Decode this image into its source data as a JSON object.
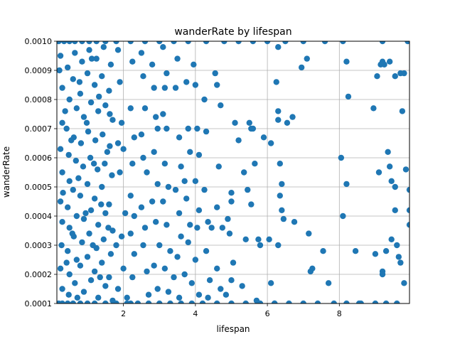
{
  "chart_data": {
    "type": "scatter",
    "title": "wanderRate by lifespan",
    "xlabel": "lifespan",
    "ylabel": "wanderRate",
    "xlim": [
      0.15,
      9.95
    ],
    "ylim": [
      0.0001,
      0.001
    ],
    "xticks": [
      2,
      4,
      6,
      8
    ],
    "xtick_labels": [
      "2",
      "4",
      "6",
      "8"
    ],
    "yticks": [
      0.0001,
      0.0002,
      0.0003,
      0.0004,
      0.0005,
      0.0006,
      0.0007,
      0.0008,
      0.0009,
      0.001
    ],
    "ytick_labels": [
      "0.0001",
      "0.0002",
      "0.0003",
      "0.0004",
      "0.0005",
      "0.0006",
      "0.0007",
      "0.0008",
      "0.0009",
      "0.0010"
    ],
    "grid": true,
    "marker_color": "#1f77b4",
    "points": [
      [
        0.2,
        0.0001
      ],
      [
        0.3,
        0.0001
      ],
      [
        0.45,
        0.0001
      ],
      [
        0.6,
        0.0001
      ],
      [
        0.8,
        0.0001
      ],
      [
        1.0,
        0.0001
      ],
      [
        1.2,
        0.0001
      ],
      [
        1.5,
        0.0001
      ],
      [
        1.8,
        0.0001
      ],
      [
        2.1,
        0.0001
      ],
      [
        2.4,
        0.0001
      ],
      [
        2.7,
        0.0001
      ],
      [
        3.0,
        0.0001
      ],
      [
        3.3,
        0.0001
      ],
      [
        3.6,
        0.0001
      ],
      [
        3.9,
        0.0001
      ],
      [
        4.2,
        0.0001
      ],
      [
        4.6,
        0.0001
      ],
      [
        5.0,
        0.0001
      ],
      [
        5.4,
        0.0001
      ],
      [
        5.8,
        0.0001
      ],
      [
        6.2,
        0.0001
      ],
      [
        6.6,
        0.0001
      ],
      [
        7.0,
        0.0001
      ],
      [
        7.4,
        0.0001
      ],
      [
        8.2,
        0.0001
      ],
      [
        8.6,
        0.0001
      ],
      [
        9.0,
        0.0001
      ],
      [
        9.3,
        0.0001
      ],
      [
        9.6,
        0.0001
      ],
      [
        0.2,
        0.001
      ],
      [
        0.35,
        0.001
      ],
      [
        0.5,
        0.001
      ],
      [
        0.65,
        0.001
      ],
      [
        0.85,
        0.001
      ],
      [
        1.05,
        0.001
      ],
      [
        1.25,
        0.001
      ],
      [
        1.5,
        0.001
      ],
      [
        1.8,
        0.001
      ],
      [
        2.2,
        0.001
      ],
      [
        2.6,
        0.001
      ],
      [
        3.0,
        0.001
      ],
      [
        3.4,
        0.001
      ],
      [
        3.8,
        0.001
      ],
      [
        4.3,
        0.001
      ],
      [
        4.8,
        0.001
      ],
      [
        5.2,
        0.001
      ],
      [
        5.6,
        0.001
      ],
      [
        6.0,
        0.001
      ],
      [
        6.5,
        0.001
      ],
      [
        7.0,
        0.001
      ],
      [
        7.6,
        0.001
      ],
      [
        8.1,
        0.001
      ],
      [
        9.2,
        0.001
      ],
      [
        9.9,
        0.001
      ],
      [
        0.25,
        0.00095
      ],
      [
        0.3,
        0.00084
      ],
      [
        0.3,
        0.00072
      ],
      [
        0.25,
        0.00063
      ],
      [
        0.3,
        0.00055
      ],
      [
        0.25,
        0.00045
      ],
      [
        0.3,
        0.00038
      ],
      [
        0.28,
        0.0003
      ],
      [
        0.25,
        0.00022
      ],
      [
        0.3,
        0.00015
      ],
      [
        0.45,
        0.00091
      ],
      [
        0.5,
        0.0008
      ],
      [
        0.42,
        0.0007
      ],
      [
        0.48,
        0.00061
      ],
      [
        0.5,
        0.00052
      ],
      [
        0.45,
        0.00043
      ],
      [
        0.5,
        0.00036
      ],
      [
        0.45,
        0.00028
      ],
      [
        0.5,
        0.0002
      ],
      [
        0.48,
        0.00013
      ],
      [
        0.65,
        0.00096
      ],
      [
        0.6,
        0.00087
      ],
      [
        0.7,
        0.00077
      ],
      [
        0.62,
        0.00067
      ],
      [
        0.68,
        0.00059
      ],
      [
        0.6,
        0.00049
      ],
      [
        0.7,
        0.0004
      ],
      [
        0.62,
        0.00033
      ],
      [
        0.7,
        0.00025
      ],
      [
        0.65,
        0.00017
      ],
      [
        0.85,
        0.00093
      ],
      [
        0.8,
        0.00082
      ],
      [
        0.9,
        0.00074
      ],
      [
        0.82,
        0.00065
      ],
      [
        0.88,
        0.00057
      ],
      [
        0.8,
        0.00047
      ],
      [
        0.9,
        0.00039
      ],
      [
        0.85,
        0.00031
      ],
      [
        0.8,
        0.00023
      ],
      [
        0.9,
        0.00014
      ],
      [
        1.05,
        0.00097
      ],
      [
        1.0,
        0.00089
      ],
      [
        1.1,
        0.00079
      ],
      [
        1.02,
        0.00069
      ],
      [
        1.08,
        0.0006
      ],
      [
        1.0,
        0.00051
      ],
      [
        1.1,
        0.00042
      ],
      [
        1.05,
        0.00034
      ],
      [
        1.0,
        0.00026
      ],
      [
        1.1,
        0.00018
      ],
      [
        1.25,
        0.00094
      ],
      [
        1.2,
        0.00085
      ],
      [
        1.3,
        0.00076
      ],
      [
        1.22,
        0.00066
      ],
      [
        1.28,
        0.00056
      ],
      [
        1.2,
        0.00046
      ],
      [
        1.3,
        0.00037
      ],
      [
        1.25,
        0.00029
      ],
      [
        1.2,
        0.00021
      ],
      [
        1.3,
        0.00012
      ],
      [
        1.45,
        0.00098
      ],
      [
        1.4,
        0.00088
      ],
      [
        1.5,
        0.00078
      ],
      [
        1.42,
        0.00068
      ],
      [
        1.48,
        0.00058
      ],
      [
        1.4,
        0.0005
      ],
      [
        1.5,
        0.00041
      ],
      [
        1.45,
        0.00032
      ],
      [
        1.4,
        0.00024
      ],
      [
        1.5,
        0.00016
      ],
      [
        1.65,
        0.00092
      ],
      [
        1.6,
        0.00083
      ],
      [
        1.7,
        0.00073
      ],
      [
        1.62,
        0.00064
      ],
      [
        1.68,
        0.00054
      ],
      [
        1.6,
        0.00044
      ],
      [
        1.7,
        0.00035
      ],
      [
        1.65,
        0.00027
      ],
      [
        1.6,
        0.00019
      ],
      [
        1.7,
        0.00011
      ],
      [
        0.22,
        0.0009
      ],
      [
        0.38,
        0.00076
      ],
      [
        0.55,
        0.00066
      ],
      [
        0.75,
        0.00053
      ],
      [
        0.95,
        0.00041
      ],
      [
        1.15,
        0.0003
      ],
      [
        1.35,
        0.00019
      ],
      [
        1.55,
        0.00062
      ],
      [
        0.32,
        0.00048
      ],
      [
        0.58,
        0.00034
      ],
      [
        0.78,
        0.00086
      ],
      [
        0.98,
        0.00072
      ],
      [
        1.18,
        0.00058
      ],
      [
        1.38,
        0.00044
      ],
      [
        1.58,
        0.00036
      ],
      [
        0.42,
        0.00024
      ],
      [
        0.72,
        0.00012
      ],
      [
        1.12,
        0.00094
      ],
      [
        1.32,
        0.00081
      ],
      [
        1.62,
        0.00075
      ],
      [
        1.85,
        0.00097
      ],
      [
        1.9,
        0.00086
      ],
      [
        1.95,
        0.00072
      ],
      [
        1.85,
        0.00065
      ],
      [
        2.0,
        0.00063
      ],
      [
        1.9,
        0.00055
      ],
      [
        2.05,
        0.00041
      ],
      [
        1.95,
        0.00033
      ],
      [
        2.0,
        0.00022
      ],
      [
        1.85,
        0.00015
      ],
      [
        2.1,
        0.00012
      ],
      [
        1.8,
        0.0003
      ],
      [
        2.25,
        0.00093
      ],
      [
        2.2,
        0.00077
      ],
      [
        2.3,
        0.00067
      ],
      [
        2.25,
        0.00058
      ],
      [
        2.2,
        0.00047
      ],
      [
        2.3,
        0.0004
      ],
      [
        2.2,
        0.00034
      ],
      [
        2.3,
        0.00027
      ],
      [
        2.25,
        0.00019
      ],
      [
        2.2,
        0.0001
      ],
      [
        2.5,
        0.00096
      ],
      [
        2.55,
        0.00088
      ],
      [
        2.6,
        0.00077
      ],
      [
        2.5,
        0.00068
      ],
      [
        2.55,
        0.0006
      ],
      [
        2.65,
        0.00055
      ],
      [
        2.5,
        0.00043
      ],
      [
        2.6,
        0.00036
      ],
      [
        2.55,
        0.0003
      ],
      [
        2.65,
        0.00021
      ],
      [
        2.7,
        0.00013
      ],
      [
        2.8,
        0.00092
      ],
      [
        2.85,
        0.00084
      ],
      [
        2.9,
        0.00074
      ],
      [
        2.95,
        0.0007
      ],
      [
        2.85,
        0.00062
      ],
      [
        2.95,
        0.00051
      ],
      [
        2.8,
        0.00045
      ],
      [
        2.9,
        0.00038
      ],
      [
        3.0,
        0.0003
      ],
      [
        2.85,
        0.00023
      ],
      [
        2.95,
        0.00015
      ],
      [
        3.1,
        0.00098
      ],
      [
        3.2,
        0.00089
      ],
      [
        3.15,
        0.00084
      ],
      [
        3.1,
        0.00075
      ],
      [
        3.2,
        0.0007
      ],
      [
        3.15,
        0.00058
      ],
      [
        3.25,
        0.0005
      ],
      [
        3.1,
        0.00045
      ],
      [
        3.2,
        0.00037
      ],
      [
        3.3,
        0.00028
      ],
      [
        3.15,
        0.00022
      ],
      [
        3.25,
        0.00014
      ],
      [
        3.5,
        0.00094
      ],
      [
        3.45,
        0.00084
      ],
      [
        3.55,
        0.00067
      ],
      [
        3.6,
        0.00057
      ],
      [
        3.45,
        0.00049
      ],
      [
        3.55,
        0.00041
      ],
      [
        3.6,
        0.00033
      ],
      [
        3.5,
        0.00026
      ],
      [
        3.4,
        0.00019
      ],
      [
        3.55,
        0.00012
      ],
      [
        3.75,
        0.00086
      ],
      [
        3.8,
        0.0007
      ],
      [
        3.85,
        0.00062
      ],
      [
        3.7,
        0.00052
      ],
      [
        3.75,
        0.00046
      ],
      [
        3.85,
        0.00037
      ],
      [
        3.8,
        0.00031
      ],
      [
        3.7,
        0.0002
      ],
      [
        3.9,
        0.00017
      ],
      [
        3.95,
        0.00092
      ],
      [
        4.0,
        0.00085
      ],
      [
        4.05,
        0.0007
      ],
      [
        4.1,
        0.00061
      ],
      [
        4.0,
        0.00052
      ],
      [
        4.1,
        0.00042
      ],
      [
        4.05,
        0.00036
      ],
      [
        4.0,
        0.00025
      ],
      [
        4.1,
        0.00013
      ],
      [
        4.25,
        0.0008
      ],
      [
        4.3,
        0.00069
      ],
      [
        4.25,
        0.00049
      ],
      [
        4.35,
        0.00038
      ],
      [
        4.45,
        0.00036
      ],
      [
        4.3,
        0.00028
      ],
      [
        4.4,
        0.00018
      ],
      [
        4.35,
        0.00012
      ],
      [
        4.55,
        0.00089
      ],
      [
        4.6,
        0.00085
      ],
      [
        4.7,
        0.00078
      ],
      [
        4.65,
        0.00057
      ],
      [
        4.6,
        0.00043
      ],
      [
        4.75,
        0.00036
      ],
      [
        4.6,
        0.00022
      ],
      [
        4.7,
        0.00015
      ],
      [
        4.9,
        0.00039
      ],
      [
        4.95,
        0.00034
      ],
      [
        5.0,
        0.00048
      ],
      [
        5.0,
        0.00045
      ],
      [
        5.05,
        0.00024
      ],
      [
        5.0,
        0.00018
      ],
      [
        4.85,
        0.00013
      ],
      [
        5.1,
        0.00072
      ],
      [
        5.2,
        0.00066
      ],
      [
        5.35,
        0.00055
      ],
      [
        5.4,
        0.00032
      ],
      [
        5.45,
        0.00049
      ],
      [
        5.5,
        0.00072
      ],
      [
        5.55,
        0.0007
      ],
      [
        5.55,
        0.00044
      ],
      [
        5.6,
        0.0007
      ],
      [
        5.65,
        0.00058
      ],
      [
        5.75,
        0.00032
      ],
      [
        5.8,
        0.0003
      ],
      [
        5.3,
        0.00016
      ],
      [
        5.7,
        0.00011
      ],
      [
        5.9,
        0.00067
      ],
      [
        6.1,
        0.00065
      ],
      [
        6.05,
        0.00032
      ],
      [
        6.25,
        0.00086
      ],
      [
        6.3,
        0.00073
      ],
      [
        6.3,
        0.00076
      ],
      [
        6.35,
        0.00058
      ],
      [
        6.4,
        0.00051
      ],
      [
        6.35,
        0.00047
      ],
      [
        6.4,
        0.00042
      ],
      [
        6.45,
        0.00039
      ],
      [
        6.3,
        0.0003
      ],
      [
        6.1,
        0.00017
      ],
      [
        6.2,
        0.0001
      ],
      [
        6.3,
        0.00098
      ],
      [
        6.55,
        0.00072
      ],
      [
        6.7,
        0.00074
      ],
      [
        6.75,
        0.00038
      ],
      [
        6.95,
        0.00091
      ],
      [
        7.1,
        0.00094
      ],
      [
        7.15,
        0.00034
      ],
      [
        7.2,
        0.00021
      ],
      [
        7.25,
        0.00022
      ],
      [
        7.55,
        0.00028
      ],
      [
        7.7,
        0.00017
      ],
      [
        7.85,
        0.0001
      ],
      [
        8.05,
        0.0006
      ],
      [
        8.1,
        0.0004
      ],
      [
        8.2,
        0.00093
      ],
      [
        8.2,
        0.00051
      ],
      [
        8.25,
        0.00081
      ],
      [
        8.45,
        0.00028
      ],
      [
        8.55,
        0.0001
      ],
      [
        8.95,
        0.00077
      ],
      [
        9.0,
        0.00027
      ],
      [
        9.05,
        0.00088
      ],
      [
        9.1,
        0.00055
      ],
      [
        9.15,
        0.00092
      ],
      [
        9.2,
        0.00021
      ],
      [
        9.2,
        0.0002
      ],
      [
        9.25,
        0.00092
      ],
      [
        9.3,
        0.00028
      ],
      [
        9.35,
        0.00062
      ],
      [
        9.4,
        0.00057
      ],
      [
        9.45,
        0.00052
      ],
      [
        9.45,
        0.00032
      ],
      [
        9.55,
        0.0005
      ],
      [
        9.55,
        0.00042
      ],
      [
        9.6,
        0.0003
      ],
      [
        9.65,
        0.00026
      ],
      [
        9.7,
        0.00089
      ],
      [
        9.75,
        0.00076
      ],
      [
        9.8,
        0.00089
      ],
      [
        9.7,
        0.00024
      ],
      [
        9.8,
        0.00017
      ],
      [
        9.85,
        0.00056
      ],
      [
        9.95,
        0.00049
      ],
      [
        9.95,
        0.00042
      ],
      [
        9.95,
        0.00037
      ],
      [
        9.2,
        0.00093
      ],
      [
        9.4,
        0.00093
      ],
      [
        9.55,
        0.00088
      ]
    ]
  }
}
